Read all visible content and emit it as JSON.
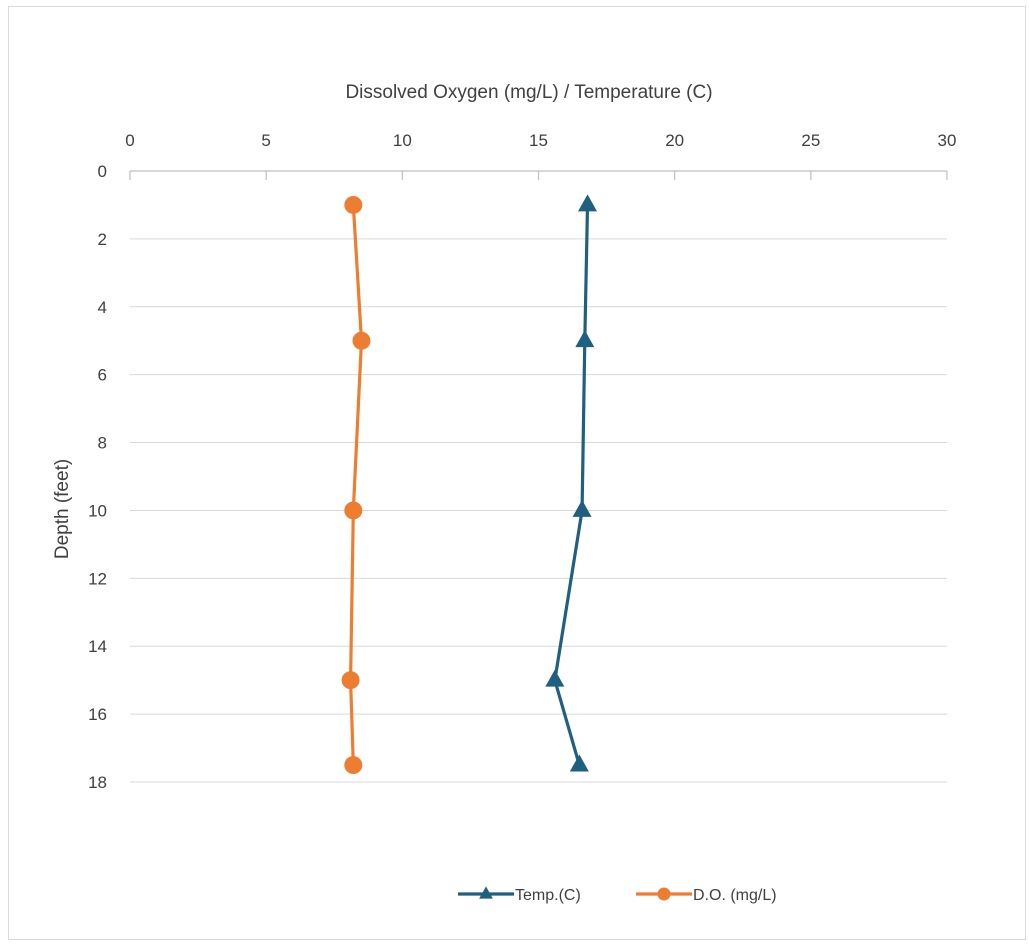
{
  "chart_data": {
    "type": "line",
    "orientation": "depth-profile",
    "xlabel": "Dissolved Oxygen (mg/L) / Temperature (C)",
    "ylabel": "Depth (feet)",
    "xlim": [
      0,
      30
    ],
    "ylim": [
      0,
      18
    ],
    "x_ticks": [
      0,
      5,
      10,
      15,
      20,
      25,
      30
    ],
    "y_ticks": [
      0,
      2,
      4,
      6,
      8,
      10,
      12,
      14,
      16,
      18
    ],
    "y_reversed": true,
    "x_axis_position": "top",
    "grid": true,
    "legend_position": "bottom",
    "series": [
      {
        "name": "Temp.(C)",
        "color": "#1f5f80",
        "marker": "triangle",
        "points": [
          {
            "depth": 1,
            "value": 16.8
          },
          {
            "depth": 5,
            "value": 16.7
          },
          {
            "depth": 10,
            "value": 16.6
          },
          {
            "depth": 15,
            "value": 15.6
          },
          {
            "depth": 17.5,
            "value": 16.5
          }
        ]
      },
      {
        "name": "D.O. (mg/L)",
        "color": "#ed7d31",
        "marker": "circle",
        "points": [
          {
            "depth": 1,
            "value": 8.2
          },
          {
            "depth": 5,
            "value": 8.5
          },
          {
            "depth": 10,
            "value": 8.2
          },
          {
            "depth": 15,
            "value": 8.1
          },
          {
            "depth": 17.5,
            "value": 8.2
          }
        ]
      }
    ]
  }
}
